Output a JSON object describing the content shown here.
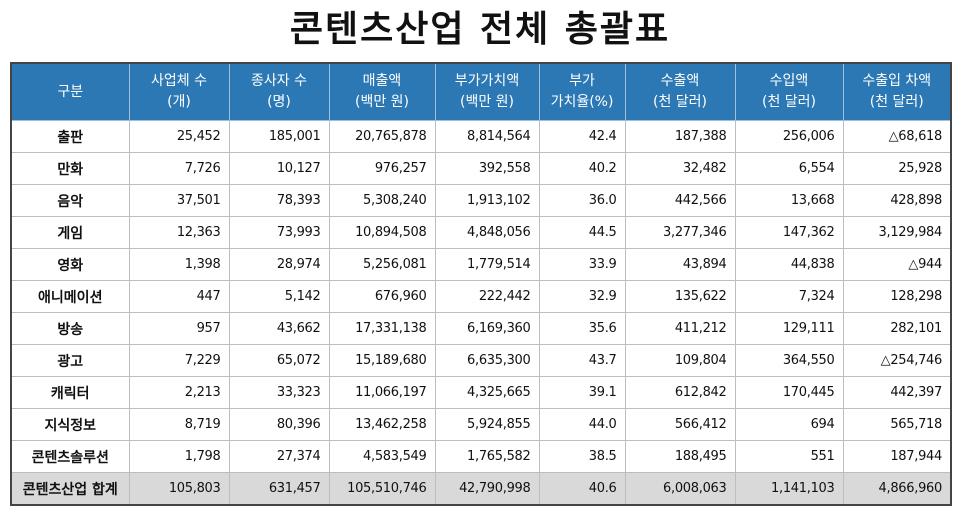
{
  "title": "콘텐츠산업 전체 총괄표",
  "columns": [
    [
      "구분",
      ""
    ],
    [
      "사업체 수",
      "(개)"
    ],
    [
      "종사자 수",
      "(명)"
    ],
    [
      "매출액",
      "(백만 원)"
    ],
    [
      "부가가치액",
      "(백만 원)"
    ],
    [
      "부가",
      "가치율(%)"
    ],
    [
      "수출액",
      "(천 달러)"
    ],
    [
      "수입액",
      "(천 달러)"
    ],
    [
      "수출입 차액",
      "(천 달러)"
    ]
  ],
  "rows": [
    [
      "출판",
      "25,452",
      "185,001",
      "20,765,878",
      "8,814,564",
      "42.4",
      "187,388",
      "256,006",
      "△68,618"
    ],
    [
      "만화",
      "7,726",
      "10,127",
      "976,257",
      "392,558",
      "40.2",
      "32,482",
      "6,554",
      "25,928"
    ],
    [
      "음악",
      "37,501",
      "78,393",
      "5,308,240",
      "1,913,102",
      "36.0",
      "442,566",
      "13,668",
      "428,898"
    ],
    [
      "게임",
      "12,363",
      "73,993",
      "10,894,508",
      "4,848,056",
      "44.5",
      "3,277,346",
      "147,362",
      "3,129,984"
    ],
    [
      "영화",
      "1,398",
      "28,974",
      "5,256,081",
      "1,779,514",
      "33.9",
      "43,894",
      "44,838",
      "△944"
    ],
    [
      "애니메이션",
      "447",
      "5,142",
      "676,960",
      "222,442",
      "32.9",
      "135,622",
      "7,324",
      "128,298"
    ],
    [
      "방송",
      "957",
      "43,662",
      "17,331,138",
      "6,169,360",
      "35.6",
      "411,212",
      "129,111",
      "282,101"
    ],
    [
      "광고",
      "7,229",
      "65,072",
      "15,189,680",
      "6,635,300",
      "43.7",
      "109,804",
      "364,550",
      "△254,746"
    ],
    [
      "캐릭터",
      "2,213",
      "33,323",
      "11,066,197",
      "4,325,665",
      "39.1",
      "612,842",
      "170,445",
      "442,397"
    ],
    [
      "지식정보",
      "8,719",
      "80,396",
      "13,462,258",
      "5,924,855",
      "44.0",
      "566,412",
      "694",
      "565,718"
    ],
    [
      "콘텐츠솔루션",
      "1,798",
      "27,374",
      "4,583,549",
      "1,765,582",
      "38.5",
      "188,495",
      "551",
      "187,944"
    ]
  ],
  "total": [
    "콘텐츠산업 합계",
    "105,803",
    "631,457",
    "105,510,746",
    "42,790,998",
    "40.6",
    "6,008,063",
    "1,141,103",
    "4,866,960"
  ],
  "colors": {
    "header_bg": "#2b78b4",
    "total_bg": "#d9d9d9"
  }
}
